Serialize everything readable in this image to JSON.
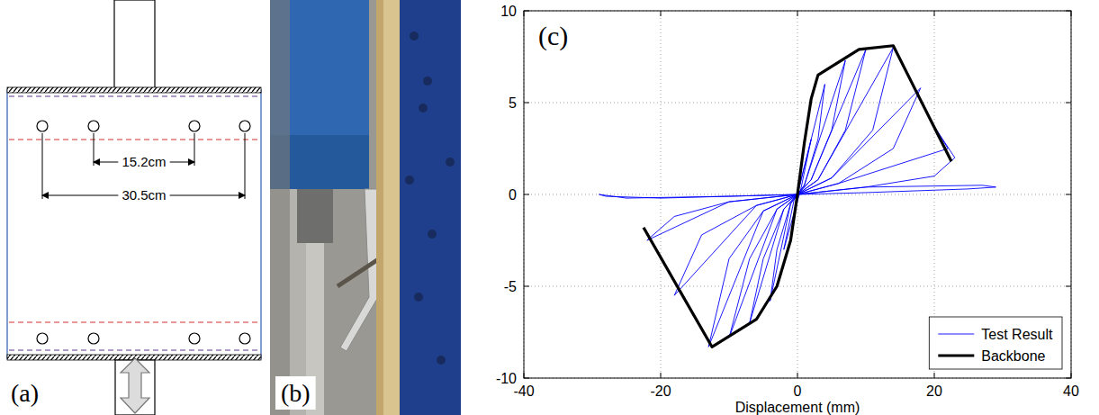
{
  "diagram": {
    "label": "(a)",
    "dimensions": [
      "15.2cm",
      "30.5cm"
    ]
  },
  "photo": {
    "label": "(b)"
  },
  "chart_data": {
    "type": "line",
    "panel_label": "(c)",
    "xlabel": "Displacement (mm)",
    "xlim": [
      -40,
      40
    ],
    "xticks": [
      -40,
      -20,
      0,
      20,
      40
    ],
    "ylim": [
      -10,
      10
    ],
    "yticks": [
      -10,
      -5,
      0,
      5,
      10
    ],
    "grid": true,
    "legend": "lower right",
    "series": [
      {
        "name": "Test Result",
        "color": "#0000ff",
        "line_style": "solid",
        "x": [
          0,
          2,
          0.5,
          -2,
          -0.5,
          0,
          4,
          3,
          1,
          -1,
          -4,
          -3,
          -1,
          1,
          7,
          5,
          2,
          -2,
          -7,
          -5,
          -2,
          2,
          10,
          7,
          3,
          -3,
          -10,
          -7,
          -3,
          3,
          14,
          11,
          5,
          -5,
          -13,
          -10,
          -5,
          5,
          18,
          14,
          6,
          -6,
          -18,
          -14,
          -6,
          6,
          22,
          20,
          23,
          20,
          10,
          -10,
          -22,
          -18,
          -10,
          10,
          27,
          29,
          25,
          10,
          -10,
          -25,
          -29,
          -28,
          -20,
          0
        ],
        "values": [
          0,
          3,
          0.3,
          -3,
          -0.3,
          0,
          6,
          3,
          0.5,
          -0.5,
          -5.8,
          -3,
          -0.5,
          0.5,
          7.3,
          3.5,
          0.8,
          -0.8,
          -7,
          -3.5,
          -0.8,
          0.8,
          7.9,
          3.5,
          0.8,
          -0.8,
          -7.8,
          -3.5,
          -0.8,
          0.8,
          8,
          3.5,
          0.9,
          -0.9,
          -8.3,
          -3.5,
          -0.9,
          0.9,
          5.8,
          2.5,
          0.6,
          -0.6,
          -5.5,
          -2.2,
          -0.6,
          0.6,
          2.5,
          3.7,
          2,
          1,
          0.4,
          -0.4,
          -2.5,
          -1.2,
          -0.4,
          0.4,
          0.5,
          0.4,
          0.3,
          0.1,
          -0.1,
          -0.2,
          0,
          -0.1,
          -0.2,
          0
        ]
      },
      {
        "name": "Backbone",
        "color": "#000000",
        "line_style": "solid",
        "x": [
          -22.5,
          -12.5,
          -6,
          -3,
          -1,
          0,
          1,
          2,
          3,
          9,
          14,
          22.5
        ],
        "values": [
          -1.8,
          -8.3,
          -6.8,
          -5,
          -2.5,
          0,
          2.8,
          5.2,
          6.5,
          7.9,
          8.1,
          1.8
        ]
      }
    ]
  }
}
